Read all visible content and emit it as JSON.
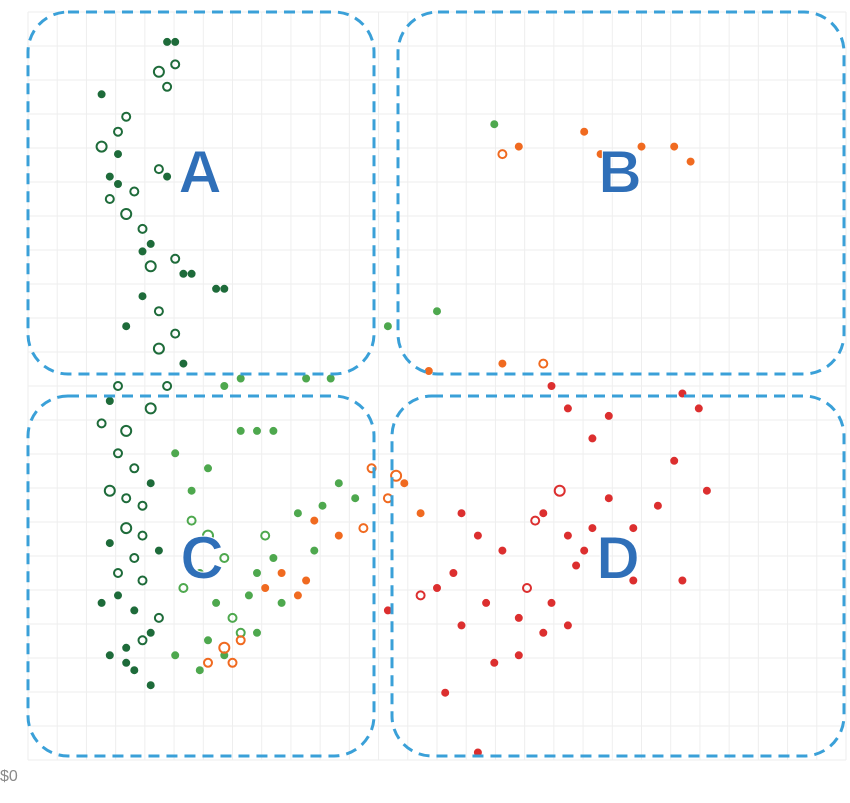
{
  "chart_data": {
    "type": "scatter",
    "title": "",
    "xlabel": "",
    "ylabel": "",
    "y_tick_labels": [
      "$0"
    ],
    "grid": true,
    "legend": "none",
    "quadrants": [
      {
        "label": "A",
        "position": "top-left"
      },
      {
        "label": "B",
        "position": "top-right"
      },
      {
        "label": "C",
        "position": "bottom-left"
      },
      {
        "label": "D",
        "position": "bottom-right"
      }
    ],
    "series": [
      {
        "color": "#1e6b3a",
        "points": [
          [
            0.09,
            0.82
          ],
          [
            0.11,
            0.84
          ],
          [
            0.12,
            0.86
          ],
          [
            0.11,
            0.81
          ],
          [
            0.1,
            0.75
          ],
          [
            0.12,
            0.73
          ],
          [
            0.13,
            0.76
          ],
          [
            0.14,
            0.71
          ],
          [
            0.15,
            0.66
          ],
          [
            0.14,
            0.62
          ],
          [
            0.16,
            0.6
          ],
          [
            0.16,
            0.55
          ],
          [
            0.18,
            0.57
          ],
          [
            0.19,
            0.53
          ],
          [
            0.17,
            0.5
          ],
          [
            0.15,
            0.47
          ],
          [
            0.12,
            0.44
          ],
          [
            0.11,
            0.41
          ],
          [
            0.13,
            0.39
          ],
          [
            0.15,
            0.37
          ],
          [
            0.14,
            0.34
          ],
          [
            0.12,
            0.31
          ],
          [
            0.1,
            0.29
          ],
          [
            0.13,
            0.27
          ],
          [
            0.14,
            0.24
          ],
          [
            0.11,
            0.22
          ],
          [
            0.09,
            0.21
          ],
          [
            0.16,
            0.19
          ],
          [
            0.15,
            0.17
          ],
          [
            0.12,
            0.15
          ],
          [
            0.13,
            0.12
          ],
          [
            0.17,
            0.96
          ],
          [
            0.18,
            0.96
          ],
          [
            0.16,
            0.92
          ],
          [
            0.18,
            0.93
          ],
          [
            0.17,
            0.9
          ],
          [
            0.09,
            0.89
          ],
          [
            0.1,
            0.78
          ],
          [
            0.11,
            0.77
          ],
          [
            0.16,
            0.79
          ],
          [
            0.17,
            0.78
          ],
          [
            0.23,
            0.63
          ],
          [
            0.24,
            0.63
          ],
          [
            0.18,
            0.67
          ],
          [
            0.19,
            0.65
          ],
          [
            0.2,
            0.65
          ],
          [
            0.14,
            0.68
          ],
          [
            0.15,
            0.69
          ],
          [
            0.12,
            0.58
          ],
          [
            0.11,
            0.5
          ],
          [
            0.1,
            0.48
          ],
          [
            0.09,
            0.45
          ],
          [
            0.1,
            0.36
          ],
          [
            0.12,
            0.35
          ],
          [
            0.14,
            0.3
          ],
          [
            0.16,
            0.28
          ],
          [
            0.11,
            0.25
          ],
          [
            0.13,
            0.2
          ],
          [
            0.14,
            0.16
          ],
          [
            0.1,
            0.14
          ],
          [
            0.12,
            0.13
          ],
          [
            0.15,
            0.1
          ]
        ],
        "sizes": [
          5,
          4,
          4,
          3,
          4,
          5,
          4,
          4,
          5,
          3,
          4,
          5,
          4,
          3,
          4,
          5,
          5,
          4,
          4,
          3,
          4,
          5,
          3,
          4,
          4,
          3,
          3,
          4,
          3,
          3,
          3,
          3,
          3,
          5,
          4,
          4,
          3,
          3,
          3,
          4,
          3,
          3,
          3,
          4,
          3,
          3,
          3,
          3,
          3,
          4,
          3,
          4,
          5,
          4,
          4,
          3,
          4,
          3,
          4,
          3,
          3,
          3
        ]
      },
      {
        "color": "#4ea84e",
        "points": [
          [
            0.2,
            0.32
          ],
          [
            0.22,
            0.3
          ],
          [
            0.24,
            0.27
          ],
          [
            0.21,
            0.25
          ],
          [
            0.19,
            0.23
          ],
          [
            0.23,
            0.21
          ],
          [
            0.25,
            0.19
          ],
          [
            0.27,
            0.22
          ],
          [
            0.26,
            0.17
          ],
          [
            0.22,
            0.16
          ],
          [
            0.18,
            0.14
          ],
          [
            0.28,
            0.25
          ],
          [
            0.3,
            0.27
          ],
          [
            0.29,
            0.3
          ],
          [
            0.33,
            0.33
          ],
          [
            0.35,
            0.28
          ],
          [
            0.31,
            0.21
          ],
          [
            0.28,
            0.17
          ],
          [
            0.24,
            0.14
          ],
          [
            0.21,
            0.12
          ],
          [
            0.36,
            0.34
          ],
          [
            0.38,
            0.37
          ],
          [
            0.4,
            0.35
          ],
          [
            0.26,
            0.44
          ],
          [
            0.28,
            0.44
          ],
          [
            0.3,
            0.44
          ],
          [
            0.24,
            0.5
          ],
          [
            0.26,
            0.51
          ],
          [
            0.34,
            0.51
          ],
          [
            0.37,
            0.51
          ],
          [
            0.44,
            0.58
          ],
          [
            0.5,
            0.6
          ],
          [
            0.57,
            0.85
          ],
          [
            0.2,
            0.36
          ],
          [
            0.22,
            0.39
          ],
          [
            0.18,
            0.41
          ]
        ],
        "sizes": [
          4,
          5,
          4,
          3,
          4,
          3,
          4,
          3,
          4,
          3,
          3,
          3,
          3,
          4,
          3,
          3,
          3,
          3,
          3,
          3,
          3,
          3,
          3,
          3,
          3,
          3,
          3,
          3,
          3,
          3,
          3,
          3,
          3,
          3,
          3,
          3
        ]
      },
      {
        "color": "#f06a20",
        "points": [
          [
            0.42,
            0.39
          ],
          [
            0.45,
            0.38
          ],
          [
            0.44,
            0.35
          ],
          [
            0.41,
            0.31
          ],
          [
            0.38,
            0.3
          ],
          [
            0.34,
            0.24
          ],
          [
            0.31,
            0.25
          ],
          [
            0.29,
            0.23
          ],
          [
            0.26,
            0.16
          ],
          [
            0.24,
            0.15
          ],
          [
            0.22,
            0.13
          ],
          [
            0.25,
            0.13
          ],
          [
            0.33,
            0.22
          ],
          [
            0.35,
            0.32
          ],
          [
            0.48,
            0.33
          ],
          [
            0.46,
            0.37
          ],
          [
            0.58,
            0.81
          ],
          [
            0.6,
            0.82
          ],
          [
            0.68,
            0.84
          ],
          [
            0.7,
            0.81
          ],
          [
            0.75,
            0.82
          ],
          [
            0.79,
            0.82
          ],
          [
            0.81,
            0.8
          ],
          [
            0.58,
            0.53
          ],
          [
            0.63,
            0.53
          ],
          [
            0.49,
            0.52
          ]
        ],
        "sizes": [
          4,
          5,
          4,
          4,
          3,
          3,
          3,
          3,
          4,
          5,
          4,
          4,
          3,
          3,
          3,
          3,
          4,
          3,
          3,
          3,
          3,
          3,
          3,
          3,
          4,
          3
        ]
      },
      {
        "color": "#dc2f2f",
        "points": [
          [
            0.53,
            0.33
          ],
          [
            0.55,
            0.3
          ],
          [
            0.58,
            0.28
          ],
          [
            0.62,
            0.32
          ],
          [
            0.65,
            0.36
          ],
          [
            0.63,
            0.33
          ],
          [
            0.66,
            0.3
          ],
          [
            0.68,
            0.28
          ],
          [
            0.61,
            0.23
          ],
          [
            0.56,
            0.21
          ],
          [
            0.52,
            0.25
          ],
          [
            0.5,
            0.23
          ],
          [
            0.48,
            0.22
          ],
          [
            0.44,
            0.2
          ],
          [
            0.53,
            0.18
          ],
          [
            0.6,
            0.19
          ],
          [
            0.64,
            0.21
          ],
          [
            0.66,
            0.18
          ],
          [
            0.63,
            0.17
          ],
          [
            0.6,
            0.14
          ],
          [
            0.57,
            0.13
          ],
          [
            0.67,
            0.26
          ],
          [
            0.69,
            0.31
          ],
          [
            0.71,
            0.35
          ],
          [
            0.74,
            0.31
          ],
          [
            0.77,
            0.34
          ],
          [
            0.74,
            0.24
          ],
          [
            0.8,
            0.24
          ],
          [
            0.83,
            0.36
          ],
          [
            0.79,
            0.4
          ],
          [
            0.66,
            0.47
          ],
          [
            0.71,
            0.46
          ],
          [
            0.69,
            0.43
          ],
          [
            0.64,
            0.5
          ],
          [
            0.8,
            0.49
          ],
          [
            0.82,
            0.47
          ],
          [
            0.55,
            0.01
          ],
          [
            0.51,
            0.09
          ]
        ],
        "sizes": [
          3,
          3,
          3,
          4,
          5,
          3,
          3,
          3,
          4,
          3,
          3,
          3,
          4,
          3,
          3,
          3,
          3,
          3,
          3,
          3,
          3,
          3,
          3,
          3,
          3,
          3,
          3,
          3,
          3,
          3,
          3,
          3,
          3,
          3,
          3,
          3,
          3,
          3
        ]
      }
    ]
  }
}
